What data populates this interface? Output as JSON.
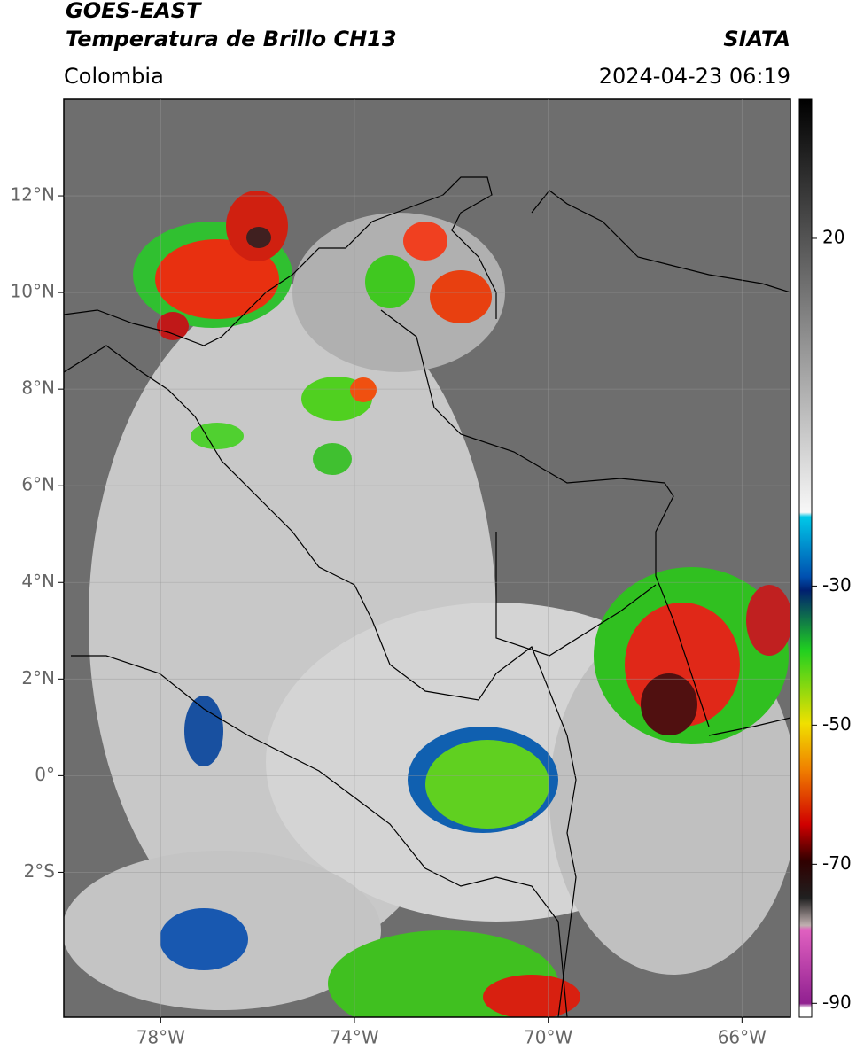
{
  "header": {
    "title": "GOES-EAST",
    "subtitle": "Temperatura de Brillo CH13",
    "source": "SIATA",
    "region": "Colombia",
    "datetime": "2024-04-23 06:19"
  },
  "map": {
    "xlim": [
      -80,
      -65
    ],
    "ylim": [
      -5,
      14
    ],
    "xticks": [
      {
        "value": -78,
        "label": "78°W"
      },
      {
        "value": -74,
        "label": "74°W"
      },
      {
        "value": -70,
        "label": "70°W"
      },
      {
        "value": -66,
        "label": "66°W"
      }
    ],
    "yticks": [
      {
        "value": 12,
        "label": "12°N"
      },
      {
        "value": 10,
        "label": "10°N"
      },
      {
        "value": 8,
        "label": "8°N"
      },
      {
        "value": 6,
        "label": "6°N"
      },
      {
        "value": 4,
        "label": "4°N"
      },
      {
        "value": 2,
        "label": "2°N"
      },
      {
        "value": 0,
        "label": "0°"
      },
      {
        "value": -2,
        "label": "2°S"
      }
    ],
    "grid": true
  },
  "colorbar": {
    "lim": [
      -92,
      40
    ],
    "ticks": [
      20,
      -30,
      -50,
      -70,
      -90
    ]
  }
}
